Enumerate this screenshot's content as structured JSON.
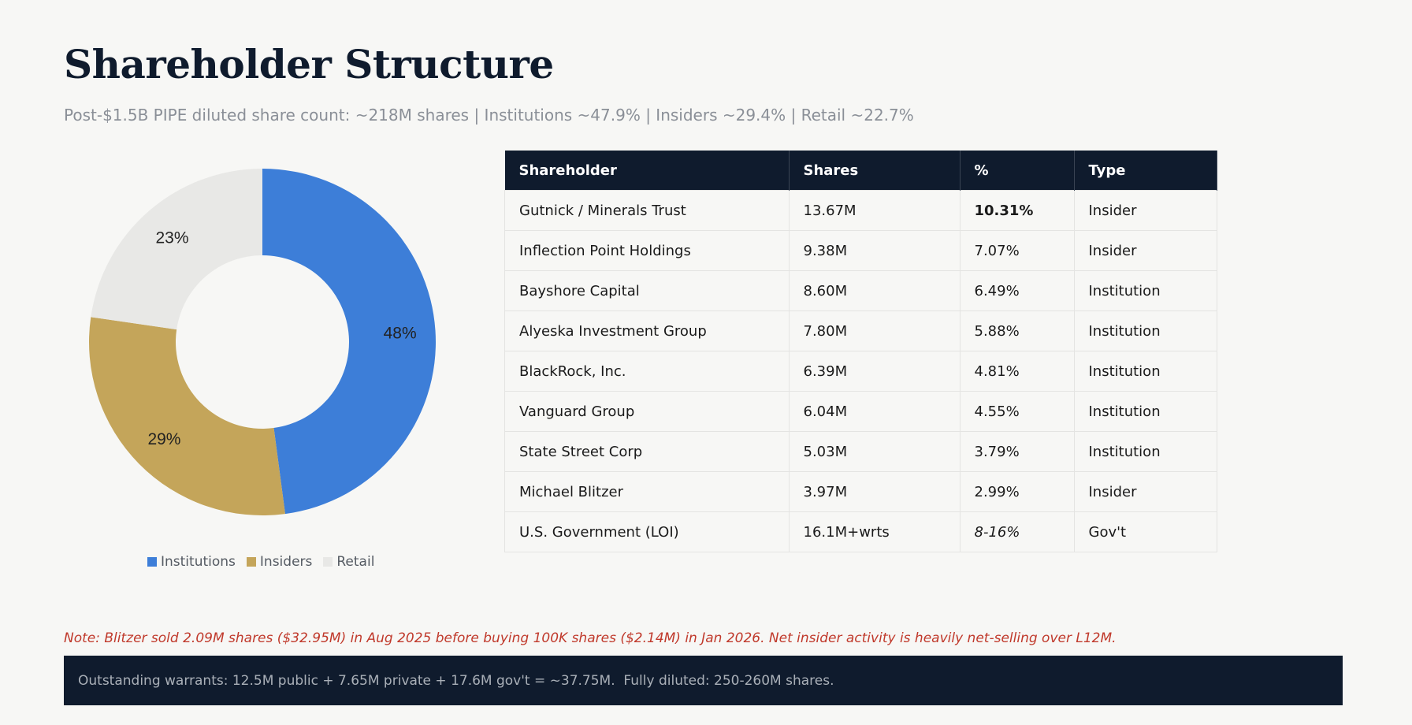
{
  "header": {
    "title": "Shareholder Structure",
    "subtitle": "Post-$1.5B PIPE diluted share count: ~218M shares | Institutions ~47.9% | Insiders ~29.4% | Retail ~22.7%"
  },
  "chart_data": {
    "type": "pie",
    "donut": true,
    "title": "",
    "categories": [
      "Institutions",
      "Insiders",
      "Retail"
    ],
    "values": [
      47.9,
      29.4,
      22.7
    ],
    "labels": [
      "48%",
      "29%",
      "23%"
    ],
    "colors": [
      "#3d7ed8",
      "#c4a55a",
      "#e8e8e6"
    ],
    "legend_position": "bottom"
  },
  "table": {
    "headers": [
      "Shareholder",
      "Shares",
      "%",
      "Type"
    ],
    "rows": [
      {
        "name": "Gutnick / Minerals Trust",
        "shares": "13.67M",
        "pct": "10.31%",
        "type": "Insider"
      },
      {
        "name": "Inflection Point Holdings",
        "shares": "9.38M",
        "pct": "7.07%",
        "type": "Insider"
      },
      {
        "name": "Bayshore Capital",
        "shares": "8.60M",
        "pct": "6.49%",
        "type": "Institution"
      },
      {
        "name": "Alyeska Investment Group",
        "shares": "7.80M",
        "pct": "5.88%",
        "type": "Institution"
      },
      {
        "name": "BlackRock, Inc.",
        "shares": "6.39M",
        "pct": "4.81%",
        "type": "Institution"
      },
      {
        "name": "Vanguard Group",
        "shares": "6.04M",
        "pct": "4.55%",
        "type": "Institution"
      },
      {
        "name": "State Street Corp",
        "shares": "5.03M",
        "pct": "3.79%",
        "type": "Institution"
      },
      {
        "name": "Michael Blitzer",
        "shares": "3.97M",
        "pct": "2.99%",
        "type": "Insider"
      },
      {
        "name": "U.S. Government (LOI)",
        "shares": "16.1M+wrts",
        "pct": "8-16%",
        "type": "Gov't"
      }
    ],
    "type_colors": {
      "Insider": "#c4a35a",
      "Institution": "#3b7dd8",
      "Gov't": "#2aa65a"
    }
  },
  "note": "Note: Blitzer sold 2.09M shares ($32.95M) in Aug 2025 before buying 100K shares ($2.14M) in Jan 2026. Net insider activity is heavily net-selling over L12M.",
  "footer": "Outstanding warrants: 12.5M public + 7.65M private + 17.6M gov't = ~37.75M.  Fully diluted: 250-260M shares."
}
